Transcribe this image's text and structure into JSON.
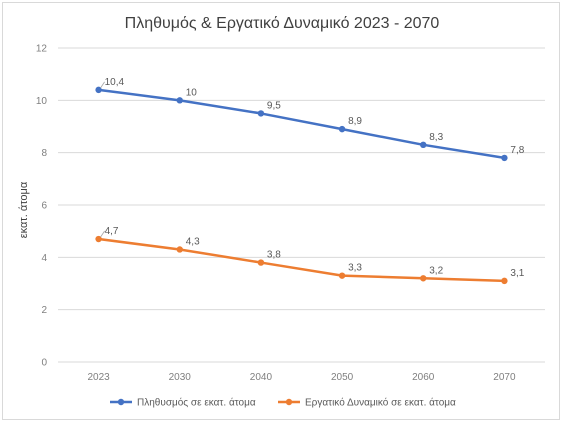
{
  "chart_data": {
    "type": "line",
    "title": "Πληθυμός & Εργατικό Δυναμικό 2023 - 2070",
    "xlabel": "",
    "ylabel": "εκατ. άτομα",
    "categories": [
      "2023",
      "2030",
      "2040",
      "2050",
      "2060",
      "2070"
    ],
    "ylim": [
      0,
      12
    ],
    "yticks": [
      0,
      2,
      4,
      6,
      8,
      10,
      12
    ],
    "grid": true,
    "legend_position": "bottom",
    "series": [
      {
        "name": "Πληθυσμός σε εκατ. άτομα",
        "color": "#4472c4",
        "values": [
          10.4,
          10,
          9.5,
          8.9,
          8.3,
          7.8
        ],
        "labels": [
          "10,4",
          "10",
          "9,5",
          "8,9",
          "8,3",
          "7,8"
        ]
      },
      {
        "name": "Εργατικό Δυναμικό σε εκατ. άτομα",
        "color": "#ed7d31",
        "values": [
          4.7,
          4.3,
          3.8,
          3.3,
          3.2,
          3.1
        ],
        "labels": [
          "4,7",
          "4,3",
          "3,8",
          "3,3",
          "3,2",
          "3,1"
        ]
      }
    ]
  }
}
